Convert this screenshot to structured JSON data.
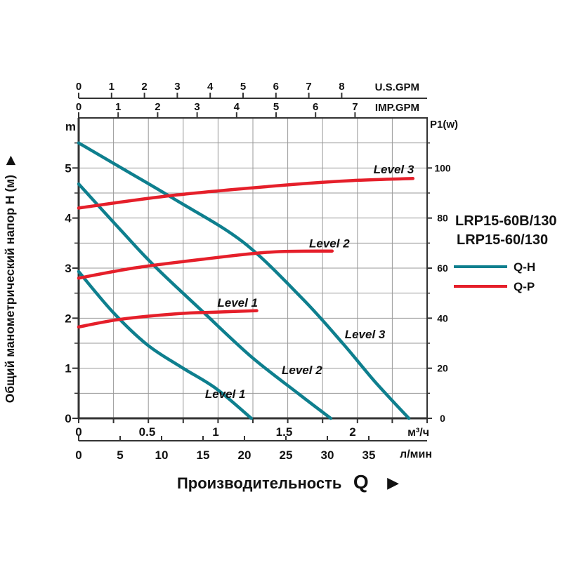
{
  "page": {
    "background": "#ffffff"
  },
  "colors": {
    "qh": "#0e7f8e",
    "qp": "#e51f2a",
    "grid": "#999999",
    "axis": "#333333",
    "text": "#111111"
  },
  "axis_titles": {
    "left": "Общий манометрический напор Н (м)",
    "left_arrow": "▶",
    "bottom": "Производительность",
    "bottom_symbol": "Q",
    "bottom_arrow": "▶",
    "left_unit": "m",
    "right_unit": "P1(w)",
    "top_primary_unit": "U.S.GPM",
    "top_secondary_unit": "IMP.GPM",
    "bottom_primary_unit": "м³/ч",
    "bottom_secondary_unit": "л/мин"
  },
  "legend": {
    "models": [
      "LRP15-60B/130",
      "LRP15-60/130"
    ],
    "entries": [
      {
        "label": "Q-H",
        "color": "#0e7f8e",
        "series": "Q-H"
      },
      {
        "label": "Q-P",
        "color": "#e51f2a",
        "series": "Q-P"
      }
    ]
  },
  "chart_data": {
    "type": "line",
    "title": "LRP15-60B/130 / LRP15-60/130 pump performance curves",
    "axes": {
      "top_us_gpm": {
        "unit": "U.S.GPM",
        "ticks": [
          0,
          1,
          2,
          3,
          4,
          5,
          6,
          7,
          8
        ]
      },
      "top_imp_gpm": {
        "unit": "IMP.GPM",
        "ticks": [
          0,
          1,
          2,
          3,
          4,
          5,
          6,
          7
        ]
      },
      "bottom_m3h": {
        "unit": "м³/ч",
        "ticks": [
          0,
          0.5,
          1,
          1.5,
          2
        ],
        "range": [
          0,
          2.54
        ]
      },
      "bottom_lmin": {
        "unit": "л/мин",
        "ticks": [
          0,
          5,
          10,
          15,
          20,
          25,
          30,
          35
        ],
        "range": [
          0,
          42
        ]
      },
      "left_head_m": {
        "unit": "m",
        "ticks": [
          0,
          1,
          2,
          3,
          4,
          5
        ],
        "range": [
          0,
          6
        ],
        "minor_step": 0.5
      },
      "right_p1_w": {
        "unit": "P1(w)",
        "ticks": [
          0,
          20,
          40,
          60,
          80,
          100
        ],
        "range": [
          0,
          120
        ],
        "minor_step": 10
      }
    },
    "grid": {
      "vertical_divisions": 10,
      "horizontal_divisions": 12
    },
    "series": [
      {
        "name": "Q-H Level 1",
        "type": "Q-H",
        "level": 1,
        "y_axis": "head_m",
        "points": [
          [
            0,
            2.93
          ],
          [
            0.25,
            2.12
          ],
          [
            0.5,
            1.47
          ],
          [
            0.75,
            1.02
          ],
          [
            1.0,
            0.6
          ],
          [
            1.26,
            0
          ]
        ]
      },
      {
        "name": "Q-H Level 2",
        "type": "Q-H",
        "level": 2,
        "y_axis": "head_m",
        "points": [
          [
            0,
            4.68
          ],
          [
            0.3,
            3.78
          ],
          [
            0.55,
            3.05
          ],
          [
            0.91,
            2.12
          ],
          [
            1.26,
            1.23
          ],
          [
            1.6,
            0.5
          ],
          [
            1.84,
            0
          ]
        ]
      },
      {
        "name": "Q-H Level 3",
        "type": "Q-H",
        "level": 3,
        "y_axis": "head_m",
        "points": [
          [
            0,
            5.5
          ],
          [
            0.3,
            5.02
          ],
          [
            0.71,
            4.36
          ],
          [
            1.2,
            3.52
          ],
          [
            1.63,
            2.4
          ],
          [
            1.93,
            1.49
          ],
          [
            2.16,
            0.74
          ],
          [
            2.41,
            0
          ]
        ]
      },
      {
        "name": "Q-P Level 1",
        "type": "Q-P",
        "level": 1,
        "y_axis": "p1_w",
        "points": [
          [
            0,
            36.5
          ],
          [
            0.31,
            39.6
          ],
          [
            0.73,
            41.8
          ],
          [
            1.0,
            42.4
          ],
          [
            1.3,
            43.0
          ]
        ]
      },
      {
        "name": "Q-P Level 2",
        "type": "Q-P",
        "level": 2,
        "y_axis": "p1_w",
        "points": [
          [
            0,
            56.0
          ],
          [
            0.4,
            60.0
          ],
          [
            0.9,
            63.5
          ],
          [
            1.4,
            66.4
          ],
          [
            1.85,
            66.8
          ]
        ]
      },
      {
        "name": "Q-P Level 3",
        "type": "Q-P",
        "level": 3,
        "y_axis": "p1_w",
        "points": [
          [
            0,
            84.0
          ],
          [
            0.71,
            89.2
          ],
          [
            1.56,
            93.4
          ],
          [
            2.0,
            95.0
          ],
          [
            2.44,
            95.8
          ]
        ]
      }
    ],
    "annotations": [
      {
        "text": "Level 3",
        "series": "Q-P",
        "q": 2.3,
        "h": 4.98
      },
      {
        "text": "Level 2",
        "series": "Q-P",
        "q": 1.83,
        "h": 3.5
      },
      {
        "text": "Level 1",
        "series": "Q-P",
        "q": 1.16,
        "h": 2.31
      },
      {
        "text": "Level 3",
        "series": "Q-H",
        "q": 2.09,
        "h": 1.68
      },
      {
        "text": "Level 2",
        "series": "Q-H",
        "q": 1.63,
        "h": 0.97
      },
      {
        "text": "Level 1",
        "series": "Q-H",
        "q": 1.07,
        "h": 0.49
      }
    ]
  }
}
